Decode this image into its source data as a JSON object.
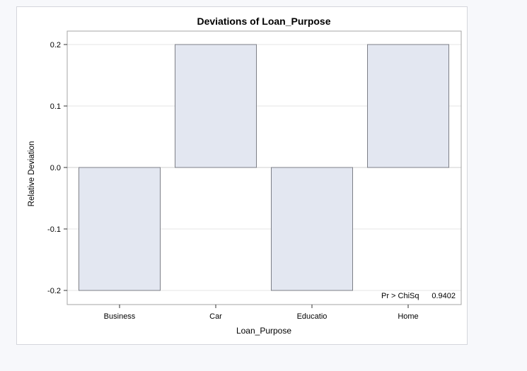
{
  "chart_data": {
    "type": "bar",
    "title": "Deviations of Loan_Purpose",
    "xlabel": "Loan_Purpose",
    "ylabel": "Relative Deviation",
    "categories": [
      "Business",
      "Car",
      "Educatio",
      "Home"
    ],
    "values": [
      -0.2,
      0.2,
      -0.2,
      0.2
    ],
    "ylim": [
      -0.22,
      0.22
    ],
    "yticks": [
      "0.2",
      "0.1",
      "0.0",
      "-0.1",
      "-0.2"
    ],
    "ytick_values": [
      0.2,
      0.1,
      0.0,
      -0.1,
      -0.2
    ],
    "grid": true,
    "inset": {
      "label": "Pr > ChiSq",
      "value": "0.9402"
    },
    "colors": {
      "bar_fill": "#e3e7f1",
      "bar_stroke": "#7d7f87",
      "grid": "#e6e6e6",
      "axis": "#a6a6a6"
    }
  }
}
